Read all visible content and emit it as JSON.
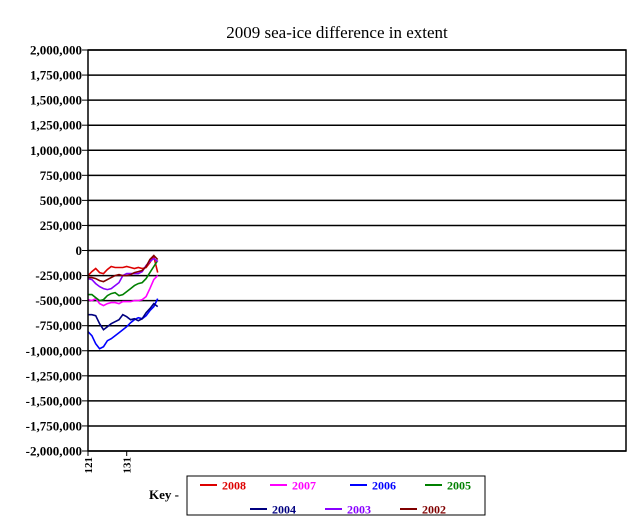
{
  "chart_data": {
    "type": "line",
    "title": "2009 sea-ice difference in extent",
    "xlabel": "",
    "ylabel": "",
    "ylim": [
      -2000000,
      2000000
    ],
    "xlim": [
      121,
      260
    ],
    "grid": true,
    "y_ticks": [
      {
        "value": 2000000,
        "label": "2,000,000"
      },
      {
        "value": 1750000,
        "label": "1,750,000"
      },
      {
        "value": 1500000,
        "label": "1,500,000"
      },
      {
        "value": 1250000,
        "label": "1,250,000"
      },
      {
        "value": 1000000,
        "label": "1,000,000"
      },
      {
        "value": 750000,
        "label": "750,000"
      },
      {
        "value": 500000,
        "label": "500,000"
      },
      {
        "value": 250000,
        "label": "250,000"
      },
      {
        "value": 0,
        "label": "0"
      },
      {
        "value": -250000,
        "label": "-250,000"
      },
      {
        "value": -500000,
        "label": "-500,000"
      },
      {
        "value": -750000,
        "label": "-750,000"
      },
      {
        "value": -1000000,
        "label": "-1,000,000"
      },
      {
        "value": -1250000,
        "label": "-1,250,000"
      },
      {
        "value": -1500000,
        "label": "-1,500,000"
      },
      {
        "value": -1750000,
        "label": "-1,750,000"
      },
      {
        "value": -2000000,
        "label": "-2,000,000"
      }
    ],
    "x_ticks": [
      {
        "value": 121,
        "label": "121"
      },
      {
        "value": 131,
        "label": "131"
      }
    ],
    "legend_label": "Key -",
    "legend_position": "bottom",
    "x": [
      121,
      122,
      123,
      124,
      125,
      126,
      127,
      128,
      129,
      130,
      131,
      132,
      133,
      134,
      135,
      136,
      137,
      138,
      139
    ],
    "series": [
      {
        "name": "2008",
        "color": "#dd0000",
        "values": [
          -250000,
          -210000,
          -180000,
          -220000,
          -230000,
          -190000,
          -160000,
          -170000,
          -170000,
          -170000,
          -160000,
          -170000,
          -180000,
          -170000,
          -180000,
          -170000,
          -120000,
          -60000,
          -220000
        ]
      },
      {
        "name": "2007",
        "color": "#ff00ff",
        "values": [
          -490000,
          -500000,
          -480000,
          -530000,
          -550000,
          -530000,
          -520000,
          -520000,
          -530000,
          -510000,
          -510000,
          -510000,
          -500000,
          -500000,
          -490000,
          -460000,
          -380000,
          -290000,
          -250000
        ]
      },
      {
        "name": "2006",
        "color": "#0000ff",
        "values": [
          -810000,
          -850000,
          -930000,
          -980000,
          -960000,
          -900000,
          -880000,
          -850000,
          -820000,
          -790000,
          -760000,
          -720000,
          -690000,
          -670000,
          -680000,
          -650000,
          -600000,
          -560000,
          -480000
        ]
      },
      {
        "name": "2005",
        "color": "#008000",
        "values": [
          -440000,
          -440000,
          -470000,
          -500000,
          -490000,
          -450000,
          -430000,
          -420000,
          -450000,
          -440000,
          -410000,
          -380000,
          -350000,
          -330000,
          -320000,
          -280000,
          -220000,
          -160000,
          -100000
        ]
      },
      {
        "name": "2004",
        "color": "#000080",
        "values": [
          -640000,
          -640000,
          -650000,
          -730000,
          -790000,
          -760000,
          -730000,
          -710000,
          -690000,
          -640000,
          -660000,
          -690000,
          -680000,
          -700000,
          -680000,
          -620000,
          -580000,
          -530000,
          -560000
        ]
      },
      {
        "name": "2003",
        "color": "#8800ff",
        "values": [
          -280000,
          -290000,
          -330000,
          -360000,
          -380000,
          -390000,
          -380000,
          -350000,
          -320000,
          -250000,
          -230000,
          -230000,
          -230000,
          -230000,
          -210000,
          -150000,
          -110000,
          -80000,
          -110000
        ]
      },
      {
        "name": "2002",
        "color": "#800000",
        "values": [
          -270000,
          -270000,
          -280000,
          -300000,
          -310000,
          -290000,
          -270000,
          -250000,
          -240000,
          -250000,
          -250000,
          -240000,
          -220000,
          -210000,
          -200000,
          -160000,
          -90000,
          -50000,
          -90000
        ]
      }
    ]
  }
}
